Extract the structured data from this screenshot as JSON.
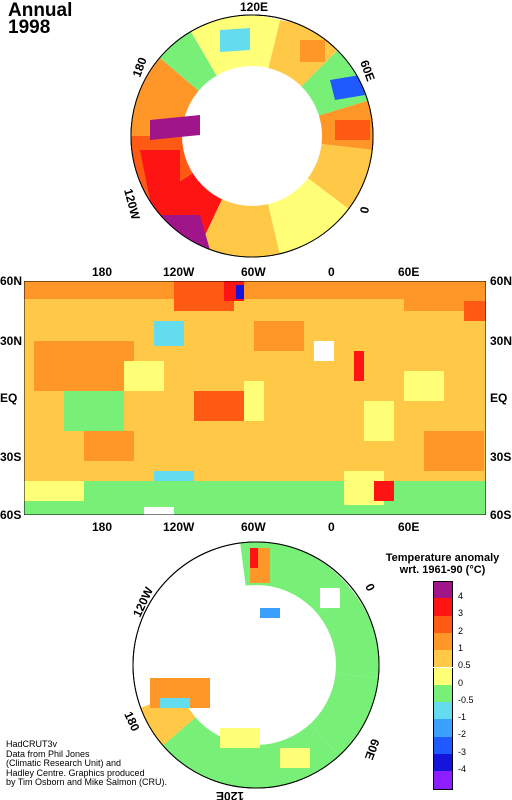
{
  "header": {
    "period": "Annual",
    "year": "1998"
  },
  "north_polar_labels": {
    "top": "120E",
    "upper_left": "180",
    "upper_right": "60E",
    "left": "120W",
    "right": "0"
  },
  "world_map": {
    "lon_labels": [
      "180",
      "120W",
      "60W",
      "0",
      "60E"
    ],
    "lat_labels": [
      "60N",
      "30N",
      "EQ",
      "30S",
      "60S"
    ]
  },
  "south_polar_labels": {
    "upper_left": "120W",
    "upper_right": "0",
    "lower_left": "180",
    "lower_right": "60E",
    "bottom": "120E"
  },
  "legend": {
    "title_line1": "Temperature anomaly",
    "title_line2": "wrt. 1961-90  (°C)",
    "entries": [
      {
        "label": "4",
        "color": "#a0168a"
      },
      {
        "label": "3",
        "color": "#ff1414"
      },
      {
        "label": "2",
        "color": "#ff5a14"
      },
      {
        "label": "1",
        "color": "#ff9628"
      },
      {
        "label": "0.5",
        "color": "#ffc846"
      },
      {
        "label": "0",
        "color": "#ffff78"
      },
      {
        "label": "-0.5",
        "color": "#78f078"
      },
      {
        "label": "-1",
        "color": "#64dcf0"
      },
      {
        "label": "-2",
        "color": "#3ca0ff"
      },
      {
        "label": "-3",
        "color": "#1e5aff"
      },
      {
        "label": "-4",
        "color": "#1414dc"
      },
      {
        "label": "",
        "color": "#8c1eff"
      }
    ]
  },
  "credits": [
    "HadCRUT3v",
    "Data from Phil Jones",
    "(Climatic Research Unit) and",
    "Hadley Centre.  Graphics produced",
    "by Tim Osborn and Mike Salmon (CRU)."
  ]
}
